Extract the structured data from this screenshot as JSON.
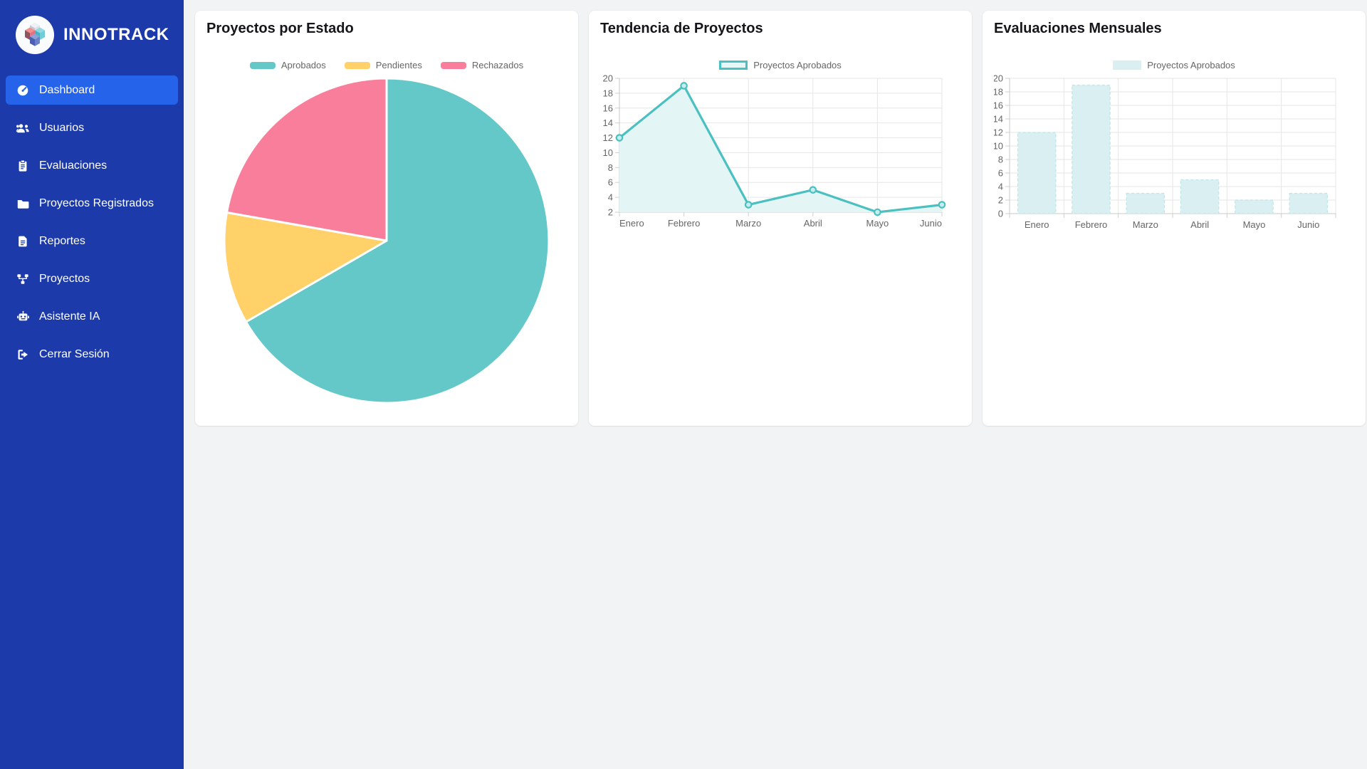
{
  "app": {
    "brand": "INNOTRACK"
  },
  "theme": {
    "sidebar_bg": "#1c3aa9",
    "sidebar_active_bg": "#2563eb",
    "main_bg": "#f1f3f4",
    "card_bg": "#ffffff",
    "teal": "#4bc0c0",
    "yellow": "#ffd168",
    "pink": "#f87e9b",
    "text_muted": "#666666"
  },
  "sidebar": {
    "items": [
      {
        "label": "Dashboard",
        "icon": "gauge-icon",
        "active": true
      },
      {
        "label": "Usuarios",
        "icon": "users-icon",
        "active": false
      },
      {
        "label": "Evaluaciones",
        "icon": "clipboard-icon",
        "active": false
      },
      {
        "label": "Proyectos Registrados",
        "icon": "folder-icon",
        "active": false
      },
      {
        "label": "Reportes",
        "icon": "file-icon",
        "active": false
      },
      {
        "label": "Proyectos",
        "icon": "diagram-icon",
        "active": false
      },
      {
        "label": "Asistente IA",
        "icon": "robot-icon",
        "active": false
      },
      {
        "label": "Cerrar Sesión",
        "icon": "signout-icon",
        "active": false
      }
    ]
  },
  "chart_data": [
    {
      "type": "pie",
      "title": "Proyectos por Estado",
      "labels": [
        "Aprobados",
        "Pendientes",
        "Rechazados"
      ],
      "values": [
        12,
        2,
        4
      ],
      "percentages": [
        66.7,
        11.1,
        22.2
      ],
      "colors": [
        "#65c8c8",
        "#ffd168",
        "#f87e9b"
      ],
      "border_color": "#ffffff",
      "legend_position": "top"
    },
    {
      "type": "line",
      "title": "Tendencia de Proyectos",
      "categories": [
        "Enero",
        "Febrero",
        "Marzo",
        "Abril",
        "Mayo",
        "Junio"
      ],
      "series": [
        {
          "name": "Proyectos Aprobados",
          "values": [
            12,
            19,
            3,
            5,
            2,
            3
          ]
        }
      ],
      "line_color": "#4bc0c0",
      "fill_color": "#e4f5f5",
      "point_fill": "#c9eded",
      "ylim": [
        2,
        20
      ],
      "ytick_step": 2,
      "grid": true,
      "legend_position": "top"
    },
    {
      "type": "bar",
      "title": "Evaluaciones Mensuales",
      "categories": [
        "Enero",
        "Febrero",
        "Marzo",
        "Abril",
        "Mayo",
        "Junio"
      ],
      "series": [
        {
          "name": "Proyectos Aprobados",
          "values": [
            12,
            19,
            3,
            5,
            2,
            3
          ]
        }
      ],
      "bar_color": "#d9eff1",
      "bar_border": "#bfe5e8",
      "ylim": [
        0,
        20
      ],
      "ytick_step": 2,
      "grid": true,
      "legend_position": "top"
    }
  ]
}
